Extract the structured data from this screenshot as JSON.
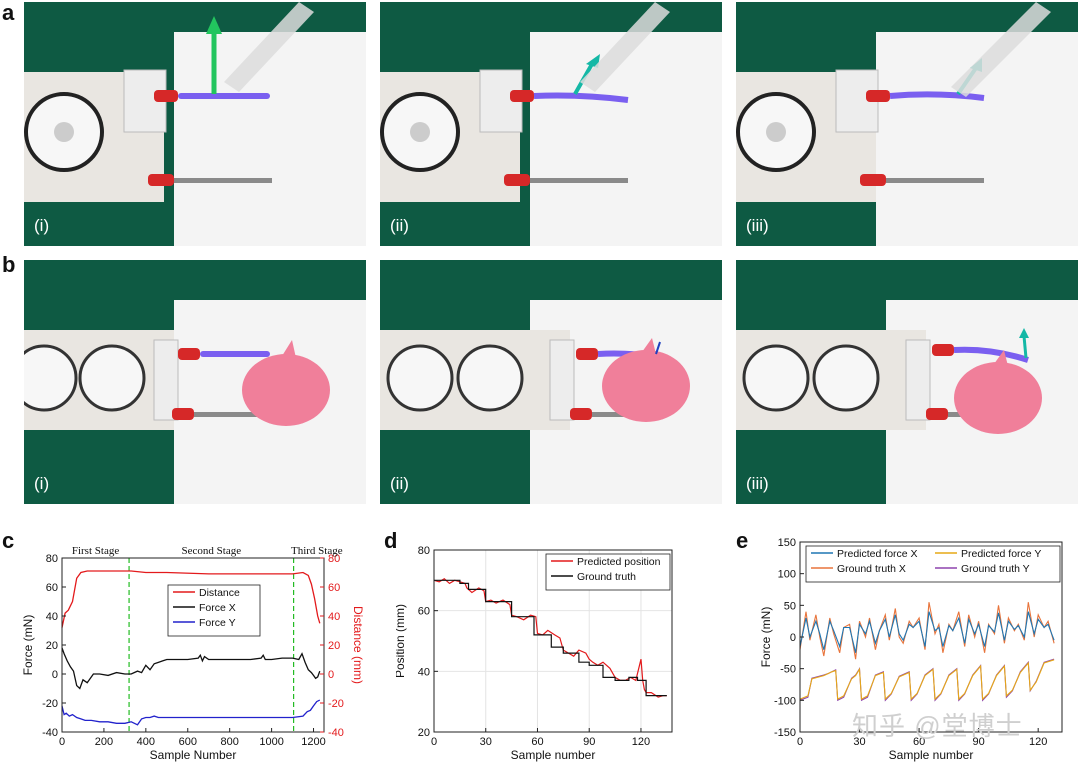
{
  "panels": {
    "a": {
      "label": "a",
      "sublabels": [
        "(i)",
        "(ii)",
        "(iii)"
      ]
    },
    "b": {
      "label": "b",
      "sublabels": [
        "(i)",
        "(ii)",
        "(iii)"
      ]
    },
    "c": {
      "label": "c"
    },
    "d": {
      "label": "d"
    },
    "e": {
      "label": "e"
    }
  },
  "colors": {
    "board_green": "#0e5a43",
    "tendon_purple": "#7a5ff0",
    "arrow_green": "#22c55e",
    "arrow_teal": "#14b8a6",
    "pig_pink": "#f07f9a",
    "red_cap": "#d62828"
  },
  "watermark": "知乎 @堂博士",
  "chart_data": [
    {
      "id": "c",
      "type": "line",
      "xlabel": "Sample Number",
      "ylabel": "Force (mN)",
      "y2label": "Distance (mm)",
      "xlim": [
        0,
        1250
      ],
      "ylim": [
        -40,
        80
      ],
      "y2lim": [
        -40,
        80
      ],
      "xticks": [
        0,
        200,
        400,
        600,
        800,
        1000,
        1200
      ],
      "yticks": [
        -40,
        -20,
        0,
        20,
        40,
        60,
        80
      ],
      "y2ticks": [
        -40,
        -20,
        0,
        20,
        40,
        60,
        80
      ],
      "stage_labels": [
        "First Stage",
        "Second Stage",
        "Third Stage"
      ],
      "stage_lines": [
        320,
        1105
      ],
      "legend": [
        "Distance",
        "Force X",
        "Force Y"
      ],
      "series": [
        {
          "name": "Distance",
          "color": "#e31a1c",
          "axis": "right",
          "x": [
            0,
            15,
            30,
            50,
            70,
            90,
            120,
            160,
            250,
            330,
            400,
            500,
            700,
            900,
            1000,
            1100,
            1150,
            1175,
            1190,
            1205,
            1220,
            1230
          ],
          "y": [
            32,
            42,
            44,
            50,
            66,
            70,
            71,
            71,
            71,
            71,
            70,
            70,
            69,
            69,
            69,
            69,
            70,
            68,
            62,
            52,
            40,
            35
          ]
        },
        {
          "name": "Force X",
          "color": "#111111",
          "axis": "left",
          "x": [
            0,
            10,
            25,
            40,
            55,
            70,
            85,
            100,
            120,
            150,
            180,
            220,
            260,
            300,
            330,
            360,
            380,
            400,
            420,
            440,
            460,
            480,
            500,
            550,
            600,
            650,
            660,
            670,
            680,
            700,
            800,
            900,
            950,
            960,
            970,
            1000,
            1050,
            1100,
            1130,
            1145,
            1160,
            1175,
            1190,
            1200,
            1210,
            1220,
            1230
          ],
          "y": [
            18,
            14,
            9,
            5,
            2,
            -8,
            -10,
            -4,
            -6,
            0,
            0,
            -1,
            1,
            0,
            0,
            2,
            1,
            6,
            3,
            7,
            8,
            9,
            10,
            10,
            10,
            11,
            13,
            9,
            12,
            10,
            10,
            10,
            11,
            13,
            10,
            10,
            11,
            11,
            10,
            14,
            8,
            3,
            1,
            -1,
            -3,
            -2,
            2
          ]
        },
        {
          "name": "Force Y",
          "color": "#2222cc",
          "axis": "left",
          "x": [
            0,
            10,
            20,
            35,
            50,
            70,
            90,
            110,
            140,
            180,
            220,
            260,
            300,
            330,
            360,
            380,
            400,
            420,
            440,
            460,
            500,
            600,
            700,
            800,
            900,
            1000,
            1100,
            1150,
            1170,
            1185,
            1200,
            1215,
            1230
          ],
          "y": [
            -22,
            -28,
            -27,
            -29,
            -28,
            -30,
            -31,
            -32,
            -32,
            -33,
            -33,
            -34,
            -34,
            -33,
            -35,
            -31,
            -30,
            -30,
            -29,
            -30,
            -30,
            -30,
            -30,
            -30,
            -30,
            -30,
            -30,
            -29,
            -26,
            -25,
            -22,
            -19,
            -18
          ]
        }
      ]
    },
    {
      "id": "d",
      "type": "line",
      "xlabel": "Sample number",
      "ylabel": "Position (mm)",
      "xlim": [
        0,
        138
      ],
      "ylim": [
        20,
        80
      ],
      "xticks": [
        0,
        30,
        60,
        90,
        120
      ],
      "yticks": [
        20,
        40,
        60,
        80
      ],
      "legend": [
        "Predicted position",
        "Ground truth"
      ],
      "series": [
        {
          "name": "Predicted position",
          "color": "#e31a1c",
          "x": [
            0,
            3,
            6,
            9,
            12,
            15,
            18,
            19,
            22,
            26,
            29,
            30,
            33,
            36,
            40,
            44,
            45,
            48,
            52,
            56,
            59,
            60,
            63,
            66,
            70,
            73,
            75,
            78,
            81,
            84,
            88,
            90,
            92,
            95,
            98,
            102,
            105,
            108,
            111,
            114,
            117,
            120,
            121,
            122,
            123,
            126,
            130,
            133,
            135
          ],
          "y": [
            70,
            69.5,
            70.5,
            69,
            70,
            69.5,
            69,
            67.5,
            66,
            67.5,
            66.5,
            63,
            63.5,
            62.5,
            63.5,
            62,
            58.5,
            58,
            57,
            58.5,
            58,
            52.5,
            52,
            53.5,
            52,
            51,
            47,
            46,
            45,
            47,
            46,
            44,
            43,
            42,
            43,
            41,
            38,
            37,
            37,
            38,
            37,
            44,
            37,
            34,
            33,
            33,
            31.5,
            32,
            32
          ]
        },
        {
          "name": "Ground truth",
          "color": "#111111",
          "x": [
            0,
            15,
            15,
            20,
            20,
            30,
            30,
            45,
            45,
            58,
            58,
            68,
            68,
            75,
            75,
            84,
            84,
            90,
            90,
            98,
            98,
            105,
            105,
            113,
            113,
            118,
            118,
            123,
            123,
            135
          ],
          "y": [
            70,
            70,
            69,
            69,
            67,
            67,
            63,
            63,
            58,
            58,
            52,
            52,
            48,
            48,
            46,
            46,
            43,
            43,
            42,
            42,
            38,
            38,
            37,
            37,
            38,
            38,
            37,
            37,
            32,
            32
          ]
        }
      ]
    },
    {
      "id": "e",
      "type": "line",
      "xlabel": "Sample number",
      "ylabel": "Force (mN)",
      "xlim": [
        0,
        132
      ],
      "ylim": [
        -150,
        150
      ],
      "xticks": [
        0,
        30,
        60,
        90,
        120
      ],
      "yticks": [
        -150,
        -100,
        -50,
        0,
        50,
        100,
        150
      ],
      "legend": [
        "Predicted force X",
        "Predicted force Y",
        "Ground truth X",
        "Ground truth Y"
      ],
      "series": [
        {
          "name": "Ground truth X",
          "color": "#e8743b",
          "x": [
            0,
            3,
            5,
            8,
            10,
            12,
            15,
            17,
            20,
            22,
            25,
            28,
            30,
            33,
            35,
            38,
            40,
            43,
            45,
            48,
            50,
            52,
            55,
            57,
            60,
            63,
            65,
            68,
            70,
            72,
            75,
            77,
            80,
            83,
            85,
            88,
            90,
            93,
            95,
            98,
            100,
            103,
            105,
            108,
            110,
            113,
            115,
            118,
            120,
            123,
            125,
            128
          ],
          "y": [
            -20,
            40,
            -5,
            35,
            0,
            -30,
            30,
            5,
            -25,
            15,
            20,
            -35,
            25,
            0,
            30,
            -20,
            10,
            35,
            -5,
            45,
            0,
            -10,
            25,
            15,
            30,
            -20,
            55,
            5,
            20,
            -25,
            20,
            10,
            40,
            -15,
            35,
            0,
            25,
            -25,
            20,
            5,
            50,
            -10,
            30,
            10,
            20,
            -5,
            55,
            0,
            35,
            15,
            25,
            -10
          ]
        },
        {
          "name": "Predicted force X",
          "color": "#1f77b4",
          "x": [
            0,
            3,
            5,
            8,
            10,
            12,
            15,
            17,
            20,
            22,
            25,
            28,
            30,
            33,
            35,
            38,
            40,
            43,
            45,
            48,
            50,
            52,
            55,
            57,
            60,
            63,
            65,
            68,
            70,
            72,
            75,
            77,
            80,
            83,
            85,
            88,
            90,
            93,
            95,
            98,
            100,
            103,
            105,
            108,
            110,
            113,
            115,
            118,
            120,
            123,
            125,
            128
          ],
          "y": [
            -15,
            30,
            0,
            25,
            5,
            -20,
            25,
            10,
            -15,
            15,
            15,
            -25,
            20,
            5,
            25,
            -10,
            10,
            28,
            0,
            35,
            5,
            -5,
            20,
            15,
            25,
            -15,
            40,
            10,
            15,
            -15,
            18,
            10,
            30,
            -10,
            28,
            5,
            20,
            -15,
            18,
            8,
            38,
            -5,
            25,
            12,
            18,
            0,
            40,
            5,
            28,
            15,
            20,
            -5
          ]
        },
        {
          "name": "Ground truth Y",
          "color": "#8e44ad",
          "x": [
            0,
            4,
            6,
            12,
            14,
            16,
            18,
            19,
            22,
            26,
            28,
            30,
            31,
            34,
            38,
            42,
            43,
            46,
            50,
            55,
            56,
            59,
            63,
            67,
            68,
            71,
            75,
            79,
            80,
            83,
            87,
            91,
            92,
            95,
            99,
            103,
            104,
            107,
            111,
            115,
            116,
            119,
            123,
            128
          ],
          "y": [
            -100,
            -95,
            -65,
            -60,
            -58,
            -55,
            -52,
            -100,
            -95,
            -65,
            -60,
            -50,
            -100,
            -95,
            -60,
            -55,
            -100,
            -90,
            -62,
            -55,
            -100,
            -90,
            -60,
            -50,
            -100,
            -90,
            -60,
            -50,
            -100,
            -90,
            -60,
            -45,
            -100,
            -90,
            -60,
            -45,
            -95,
            -85,
            -55,
            -40,
            -85,
            -70,
            -40,
            -35
          ]
        },
        {
          "name": "Predicted force Y",
          "color": "#e6a817",
          "x": [
            0,
            4,
            6,
            12,
            14,
            16,
            18,
            19,
            22,
            26,
            28,
            30,
            31,
            34,
            38,
            42,
            43,
            46,
            50,
            55,
            56,
            59,
            63,
            67,
            68,
            71,
            75,
            79,
            80,
            83,
            87,
            91,
            92,
            95,
            99,
            103,
            104,
            107,
            111,
            115,
            116,
            119,
            123,
            128
          ],
          "y": [
            -98,
            -93,
            -66,
            -61,
            -58,
            -55,
            -53,
            -98,
            -93,
            -66,
            -61,
            -51,
            -98,
            -93,
            -61,
            -56,
            -98,
            -89,
            -63,
            -56,
            -98,
            -89,
            -61,
            -51,
            -98,
            -89,
            -61,
            -51,
            -98,
            -89,
            -61,
            -46,
            -98,
            -89,
            -61,
            -46,
            -93,
            -84,
            -56,
            -41,
            -84,
            -71,
            -41,
            -36
          ]
        }
      ]
    }
  ]
}
